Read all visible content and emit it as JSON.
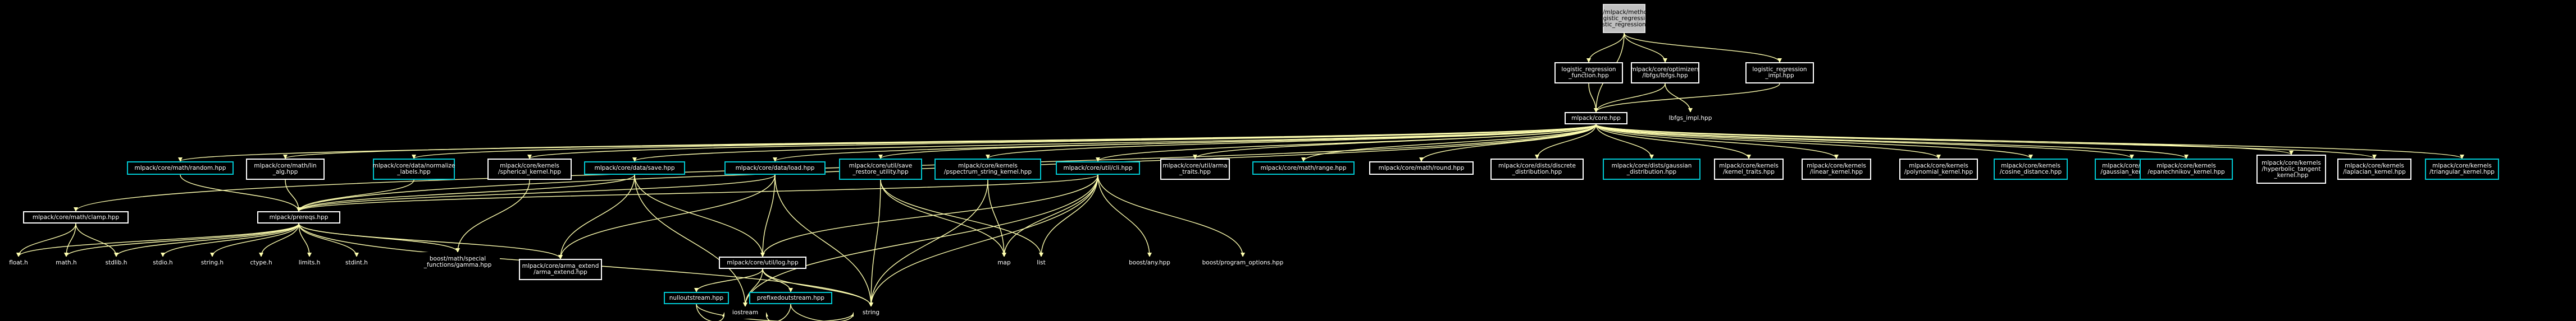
{
  "root": "src/mlpack/methods\n/logistic_regression\n/logistic_regression.hpp",
  "level1": {
    "function": "logistic_regression\n_function.hpp",
    "lbfgs": "mlpack/core/optimizers\n/lbfgs/lbfgs.hpp",
    "impl": "logistic_regression\n_impl.hpp"
  },
  "core_hpp": "mlpack/core.hpp",
  "lbfgs_impl": "lbfgs_impl.hpp",
  "level3": {
    "random": "mlpack/core/math/random.hpp",
    "lin_alg": "mlpack/core/math/lin\n_alg.hpp",
    "normalize_labels": "mlpack/core/data/normalize\n_labels.hpp",
    "spherical_kernel": "mlpack/core/kernels\n/spherical_kernel.hpp",
    "save": "mlpack/core/data/save.hpp",
    "load": "mlpack/core/data/load.hpp",
    "save_restore_utility": "mlpack/core/util/save\n_restore_utility.hpp",
    "pspectrum": "mlpack/core/kernels\n/pspectrum_string_kernel.hpp",
    "cli": "mlpack/core/util/cli.hpp",
    "arma_traits": "mlpack/core/util/arma\n_traits.hpp",
    "range": "mlpack/core/math/range.hpp",
    "round": "mlpack/core/math/round.hpp",
    "discrete_distribution": "mlpack/core/dists/discrete\n_distribution.hpp",
    "gaussian_distribution": "mlpack/core/dists/gaussian\n_distribution.hpp",
    "kernel_traits": "mlpack/core/kernels\n/kernel_traits.hpp",
    "linear_kernel": "mlpack/core/kernels\n/linear_kernel.hpp",
    "polynomial_kernel": "mlpack/core/kernels\n/polynomial_kernel.hpp",
    "cosine_distance": "mlpack/core/kernels\n/cosine_distance.hpp",
    "gaussian_kernel": "mlpack/core/kernels\n/gaussian_kernel.hpp",
    "epanechnikov_kernel": "mlpack/core/kernels\n/epanechnikov_kernel.hpp",
    "hyperbolic_tangent": "mlpack/core/kernels\n/hyperbolic_tangent\n_kernel.hpp",
    "laplacian_kernel": "mlpack/core/kernels\n/laplacian_kernel.hpp",
    "triangular_kernel": "mlpack/core/kernels\n/triangular_kernel.hpp"
  },
  "clamp": "mlpack/core/math/clamp.hpp",
  "prereqs": "mlpack/prereqs.hpp",
  "log": "mlpack/core/util/log.hpp",
  "level4": {
    "map": "map",
    "list": "list",
    "boost_any": "boost/any.hpp",
    "program_options": "boost/program_options.hpp"
  },
  "level5": {
    "float_h": "float.h",
    "math_h": "math.h",
    "stdlib_h": "stdlib.h",
    "stdio_h": "stdio.h",
    "string_h": "string.h",
    "ctype_h": "ctype.h",
    "limits_h": "limits.h",
    "stdint_h": "stdint.h",
    "gamma": "boost/math/special\n_functions/gamma.hpp",
    "arma_extend": "mlpack/core/arma_extend\n/arma_extend.hpp",
    "nulloutstream": "nulloutstream.hpp",
    "prefixedoutstream": "prefixedoutstream.hpp"
  },
  "level6": {
    "iostream": "iostream",
    "string": "string"
  },
  "colors": {
    "background": "#000000",
    "edge": "#ffffb0",
    "node_border": "#ffffff",
    "node_border_link": "#00c8d2",
    "root_fill": "#bfbfbf"
  }
}
